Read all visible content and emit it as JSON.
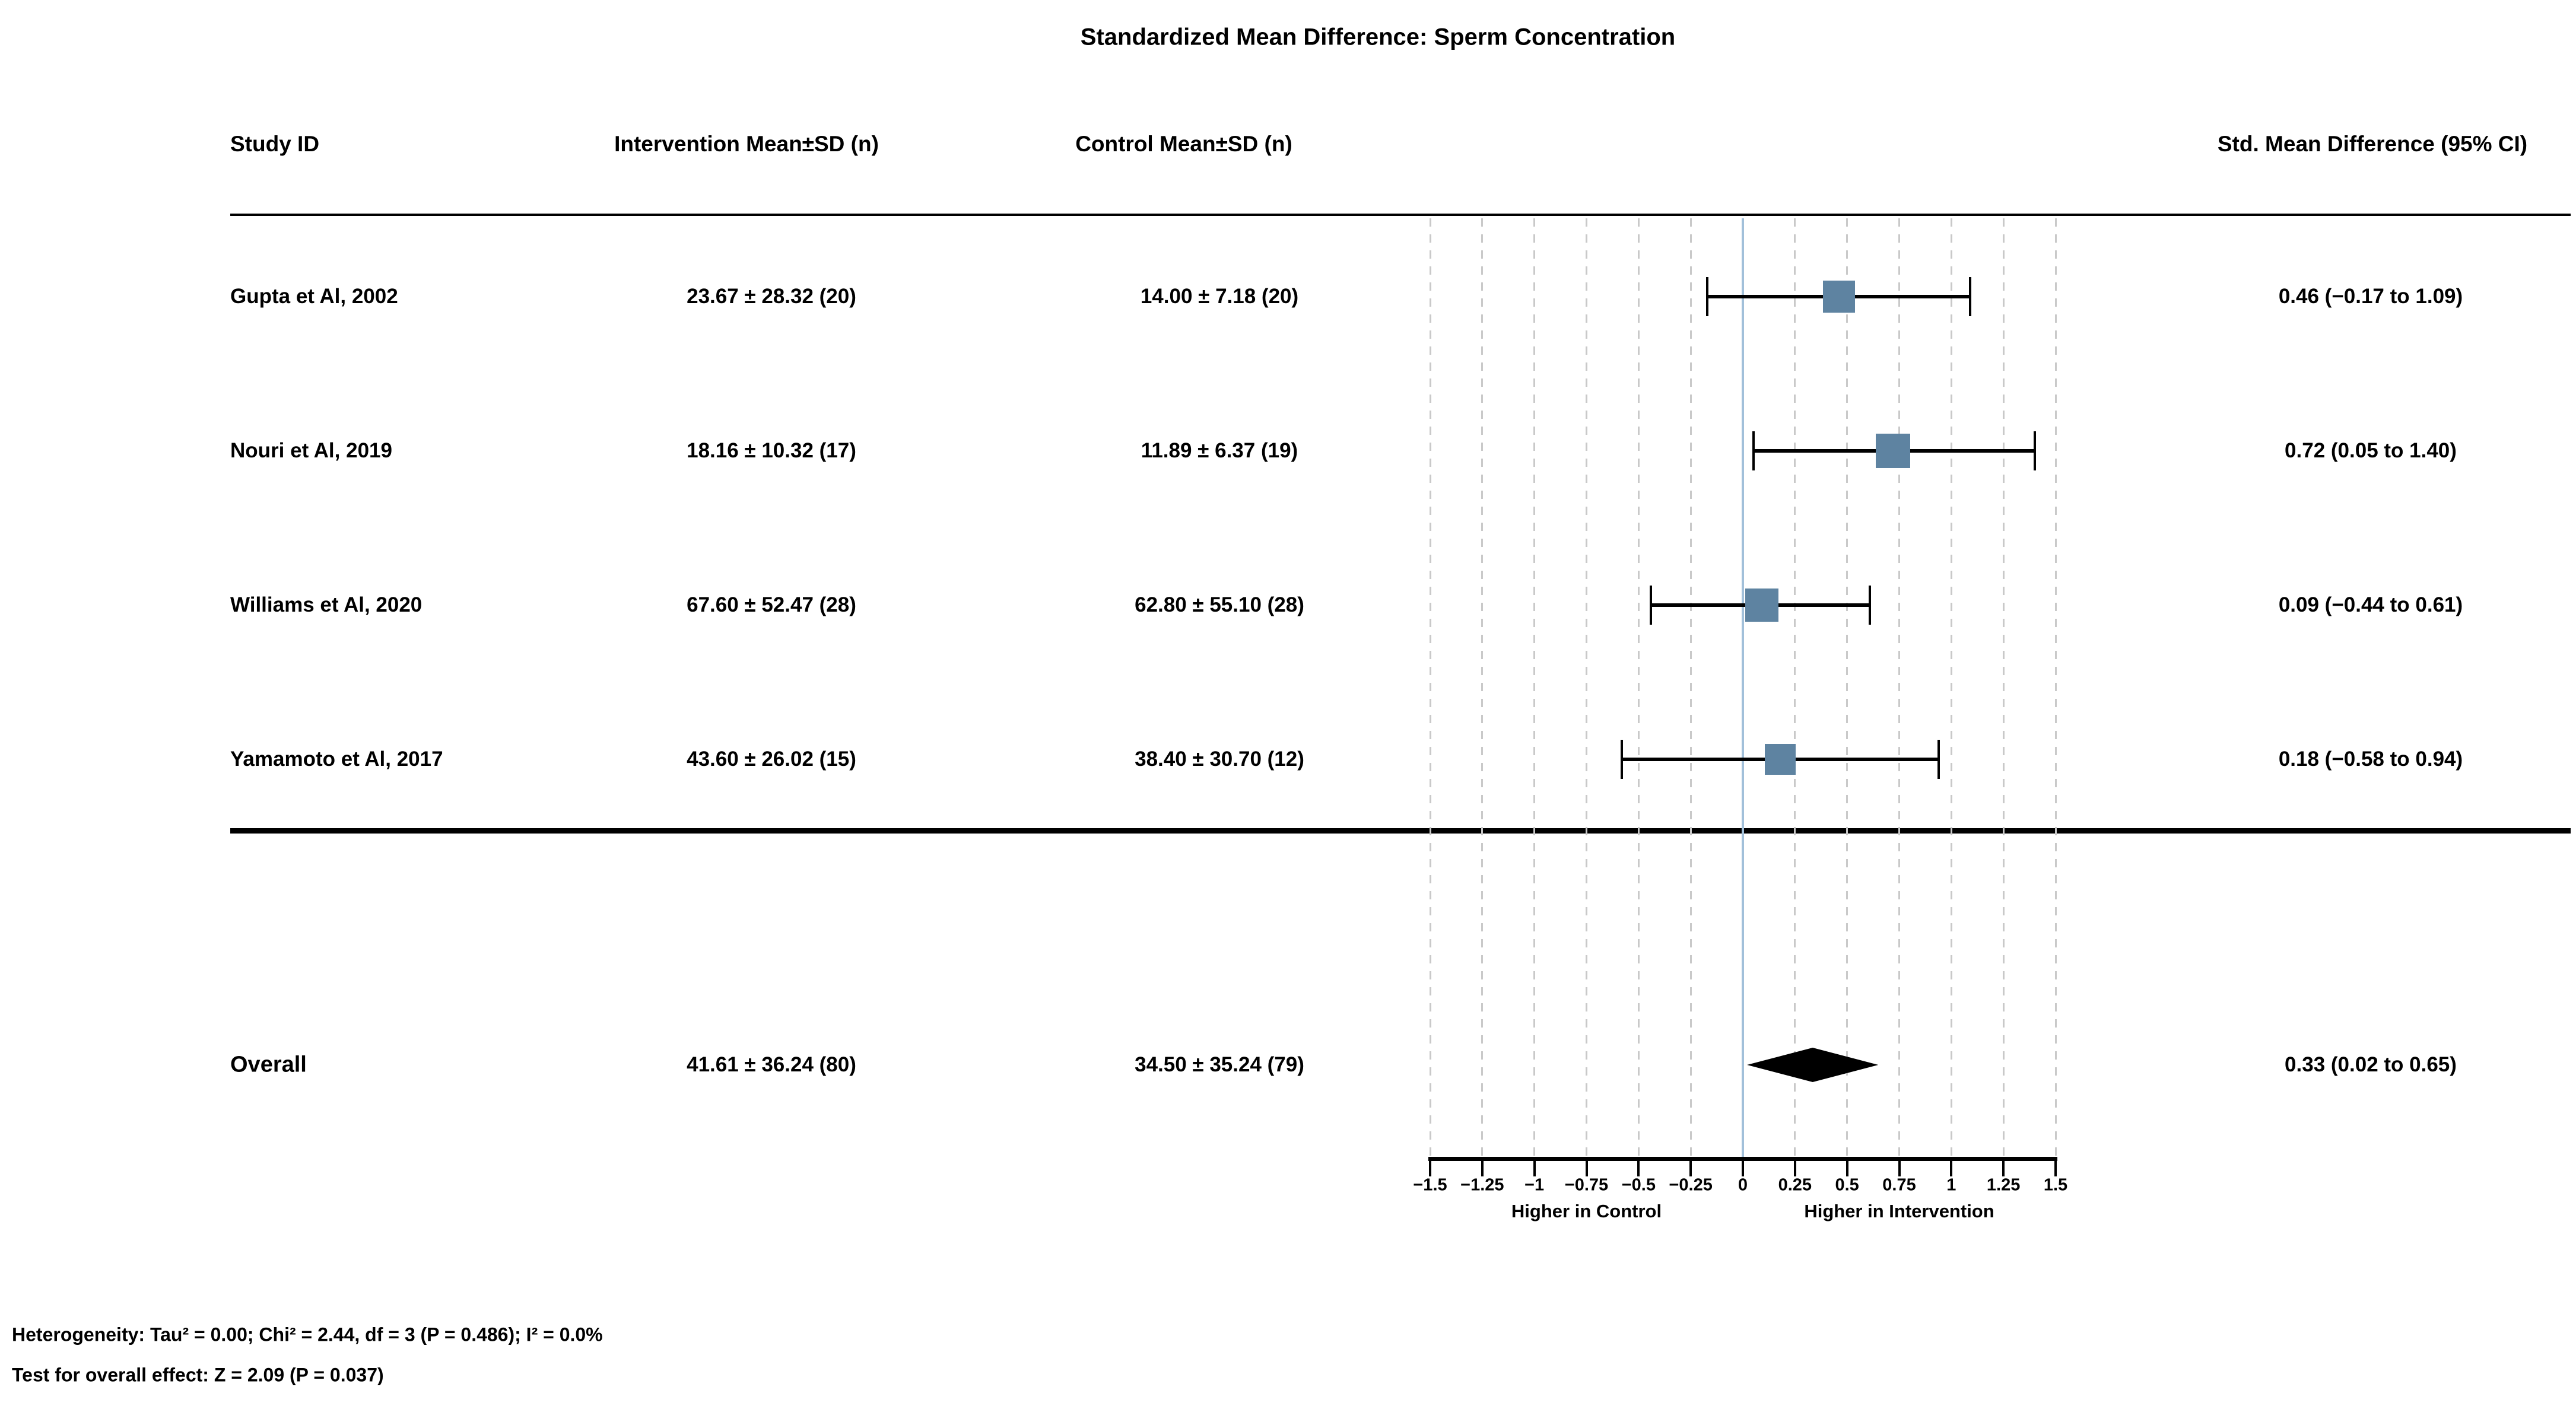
{
  "title": "Standardized Mean Difference: Sperm Concentration",
  "columns": {
    "study_id": "Study ID",
    "intervention": "Intervention Mean±SD (n)",
    "control": "Control Mean±SD (n)",
    "smd": "Std. Mean Difference  (95% CI)"
  },
  "chart_data": {
    "type": "forest",
    "effect_measure": "Standardized Mean Difference",
    "outcome": "Sperm Concentration",
    "studies": [
      {
        "study_id": "Gupta et Al, 2002",
        "intervention": "23.67 ± 28.32 (20)",
        "control": "14.00 ± 7.18 (20)",
        "smd": 0.46,
        "ci_low": -0.17,
        "ci_high": 1.09,
        "smd_ci_label": "0.46 (−0.17 to 1.09)",
        "marker_px": 54
      },
      {
        "study_id": "Nouri et Al, 2019",
        "intervention": "18.16 ± 10.32 (17)",
        "control": "11.89 ± 6.37 (19)",
        "smd": 0.72,
        "ci_low": 0.05,
        "ci_high": 1.4,
        "smd_ci_label": "0.72 (0.05 to 1.40)",
        "marker_px": 58
      },
      {
        "study_id": "Williams et Al, 2020",
        "intervention": "67.60 ± 52.47 (28)",
        "control": "62.80 ± 55.10 (28)",
        "smd": 0.09,
        "ci_low": -0.44,
        "ci_high": 0.61,
        "smd_ci_label": "0.09 (−0.44 to 0.61)",
        "marker_px": 56
      },
      {
        "study_id": "Yamamoto et Al, 2017",
        "intervention": "43.60 ± 26.02 (15)",
        "control": "38.40 ± 30.70 (12)",
        "smd": 0.18,
        "ci_low": -0.58,
        "ci_high": 0.94,
        "smd_ci_label": "0.18 (−0.58 to 0.94)",
        "marker_px": 52
      }
    ],
    "overall": {
      "label": "Overall",
      "intervention": "41.61 ± 36.24 (80)",
      "control": "34.50 ± 35.24 (79)",
      "smd": 0.33,
      "ci_low": 0.02,
      "ci_high": 0.65,
      "smd_ci_label": "0.33 (0.02 to 0.65)"
    },
    "axis": {
      "min": -1.5,
      "max": 1.5,
      "ticks": [
        -1.5,
        -1.25,
        -1,
        -0.75,
        -0.5,
        -0.25,
        0,
        0.25,
        0.5,
        0.75,
        1,
        1.25,
        1.5
      ],
      "tick_labels": [
        "−1.5",
        "−1.25",
        "−1",
        "−0.75",
        "−0.5",
        "−0.25",
        "0",
        "0.25",
        "0.5",
        "0.75",
        "1",
        "1.25",
        "1.5"
      ],
      "left_label": "Higher in Control",
      "right_label": "Higher in Intervention",
      "zero_line_value": 0,
      "grid": "dashed"
    },
    "colors": {
      "marker": "#5e83a1",
      "zero_line": "#a2c0da",
      "gridline": "#c9c9c9",
      "diamond": "#000000",
      "text": "#000000",
      "background": "#ffffff"
    }
  },
  "footnotes": [
    "Heterogeneity: Tau² = 0.00; Chi² = 2.44, df = 3 (P = 0.486); I² = 0.0%",
    "Test for overall effect: Z = 2.09 (P = 0.037)"
  ]
}
